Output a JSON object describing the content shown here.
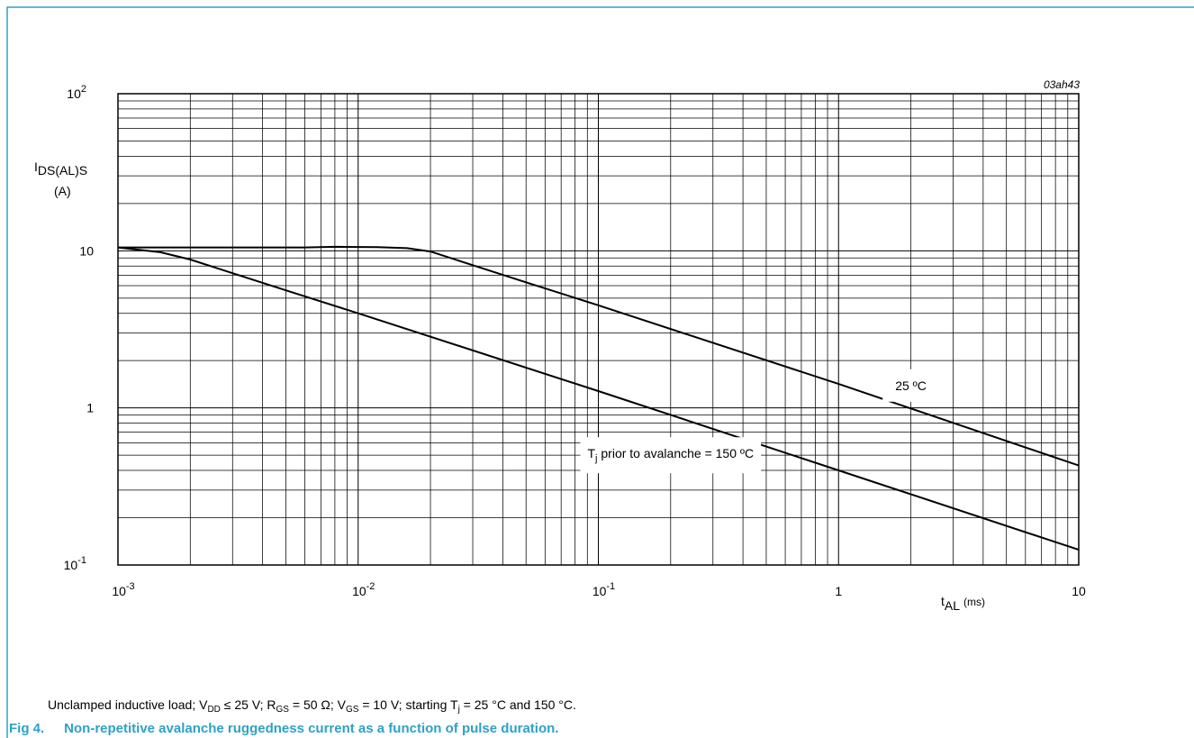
{
  "colors": {
    "frame": "#2da2c6",
    "title": "#2da2c6",
    "grid": "#000000",
    "curve": "#000000"
  },
  "chart_data": {
    "type": "line",
    "title": "",
    "ref_code": "03ah43",
    "x_scale": "log",
    "y_scale": "log",
    "xlim": [
      0.001,
      10
    ],
    "ylim": [
      0.1,
      100
    ],
    "grid": true,
    "ylabel": {
      "main": "I",
      "sub": "DS(AL)S",
      "unit": "(A)"
    },
    "xlabel": {
      "main": "t",
      "sub": "AL",
      "unit": "(ms)"
    },
    "x_ticks": [
      {
        "value": 0.001,
        "base": "10",
        "exp": "-3"
      },
      {
        "value": 0.01,
        "base": "10",
        "exp": "-2"
      },
      {
        "value": 0.1,
        "base": "10",
        "exp": "-1"
      },
      {
        "value": 1,
        "base": "1",
        "exp": ""
      },
      {
        "value": 10,
        "base": "10",
        "exp": ""
      }
    ],
    "y_ticks": [
      {
        "value": 0.1,
        "base": "10",
        "exp": "-1"
      },
      {
        "value": 1,
        "base": "1",
        "exp": ""
      },
      {
        "value": 10,
        "base": "10",
        "exp": ""
      },
      {
        "value": 100,
        "base": "10",
        "exp": "2"
      }
    ],
    "series": [
      {
        "label_text": "25 ºC",
        "label_at": [
          2.0,
          1.3
        ],
        "points": [
          [
            0.001,
            10.5
          ],
          [
            0.003,
            10.5
          ],
          [
            0.006,
            10.5
          ],
          [
            0.008,
            10.6
          ],
          [
            0.012,
            10.55
          ],
          [
            0.016,
            10.4
          ],
          [
            0.02,
            9.9
          ],
          [
            0.03,
            8.1
          ],
          [
            0.05,
            6.3
          ],
          [
            0.1,
            4.5
          ],
          [
            1,
            1.42
          ],
          [
            10,
            0.43
          ]
        ]
      },
      {
        "label_text_main": "T",
        "label_text_sub": "j",
        "label_text_rest": " prior to avalanche = 150 ºC",
        "label_at": [
          0.2,
          0.48
        ],
        "points": [
          [
            0.001,
            10.5
          ],
          [
            0.0015,
            9.8
          ],
          [
            0.002,
            8.8
          ],
          [
            0.003,
            7.2
          ],
          [
            0.005,
            5.6
          ],
          [
            0.01,
            4.0
          ],
          [
            0.1,
            1.28
          ],
          [
            1,
            0.4
          ],
          [
            10,
            0.125
          ]
        ]
      }
    ]
  },
  "caption": {
    "prefix": "Unclamped inductive load; V",
    "vdd_sub": "DD",
    "p1": " ≤ 25 V; R",
    "rgs_sub": "GS",
    "p2": " = 50 Ω; V",
    "vgs_sub": "GS",
    "p3": " = 10 V; starting T",
    "tj_sub": "j",
    "p4": " = 25 °C and 150 °C."
  },
  "figure": {
    "number": "Fig 4.",
    "title": "Non-repetitive avalanche ruggedness current as a function of pulse duration."
  }
}
